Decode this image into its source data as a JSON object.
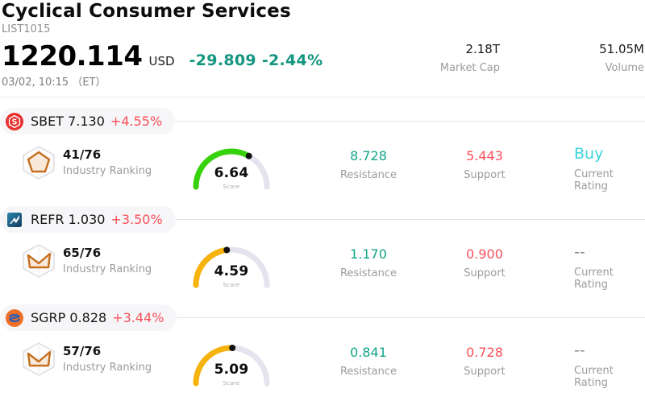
{
  "header": {
    "title": "Cyclical Consumer Services",
    "symbol": "LIST1015",
    "price": "1220.114",
    "currency": "USD",
    "change": "-29.809 -2.44%",
    "change_color": "#13957f",
    "datetime": "03/02, 10:15 （ET）",
    "stats": {
      "market_cap": {
        "value": "2.18T",
        "label": "Market Cap"
      },
      "volume": {
        "value": "51.05M",
        "label": "Volume"
      }
    }
  },
  "columns": {
    "ranking_label": "Industry Ranking",
    "score_label": "Score",
    "resistance_label": "Resistance",
    "support_label": "Support",
    "rating_label": "Current Rating"
  },
  "colors": {
    "gauge_track": "#e3e4ed",
    "gauge_dot": "#131313",
    "positive": "#10a489",
    "negative": "#f8505a",
    "buy": "#3ed5d8"
  },
  "stocks": [
    {
      "ticker_line": "SBET 7.130",
      "change_pct": "+4.55%",
      "logo": "sbet-logo",
      "ranking": "41/76",
      "score": 6.64,
      "gauge_color": "#36d30c",
      "resistance": "8.728",
      "support": "5.443",
      "rating": "Buy",
      "rating_color": "#3ed5d8"
    },
    {
      "ticker_line": "REFR 1.030",
      "change_pct": "+3.50%",
      "logo": "refr-logo",
      "ranking": "65/76",
      "score": 4.59,
      "gauge_color": "#f7b30d",
      "resistance": "1.170",
      "support": "0.900",
      "rating": "--",
      "rating_color": "#8a8a8a"
    },
    {
      "ticker_line": "SGRP 0.828",
      "change_pct": "+3.44%",
      "logo": "sgrp-logo",
      "ranking": "57/76",
      "score": 5.09,
      "gauge_color": "#f7b30d",
      "resistance": "0.841",
      "support": "0.728",
      "rating": "--",
      "rating_color": "#8a8a8a"
    }
  ]
}
